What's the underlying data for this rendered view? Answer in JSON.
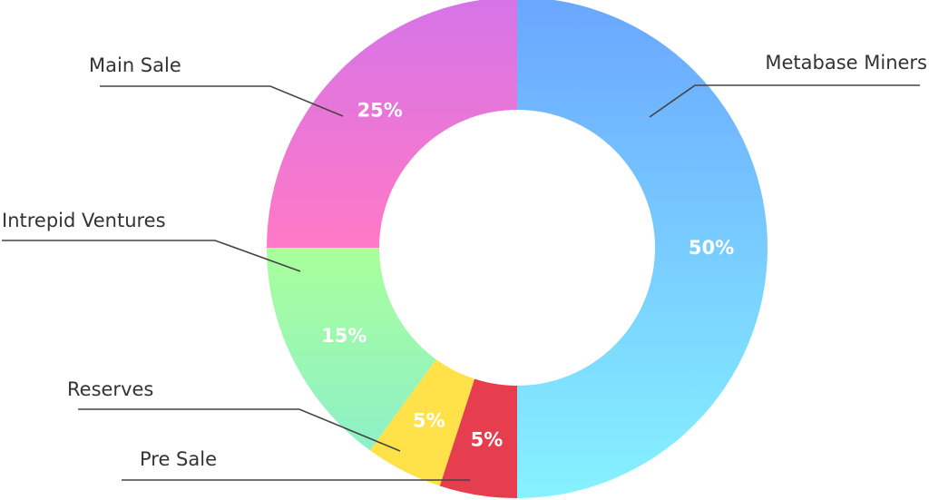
{
  "chart_data": {
    "type": "pie",
    "donut": true,
    "slices": [
      {
        "name": "Metabase Miners",
        "value": 50,
        "label": "50%",
        "colors": [
          "#6aa6ff",
          "#86f2ff"
        ]
      },
      {
        "name": "Pre Sale",
        "value": 5,
        "label": "5%",
        "colors": [
          "#e63d4f",
          "#e63d4f"
        ]
      },
      {
        "name": "Reserves",
        "value": 5,
        "label": "5%",
        "colors": [
          "#ffe14a",
          "#ffe14a"
        ]
      },
      {
        "name": "Intrepid Ventures",
        "value": 15,
        "label": "15%",
        "colors": [
          "#a9ff9b",
          "#8df0c8"
        ]
      },
      {
        "name": "Main Sale",
        "value": 25,
        "label": "25%",
        "colors": [
          "#d574e8",
          "#ff79c6"
        ]
      }
    ],
    "legend": "leader-lines"
  }
}
